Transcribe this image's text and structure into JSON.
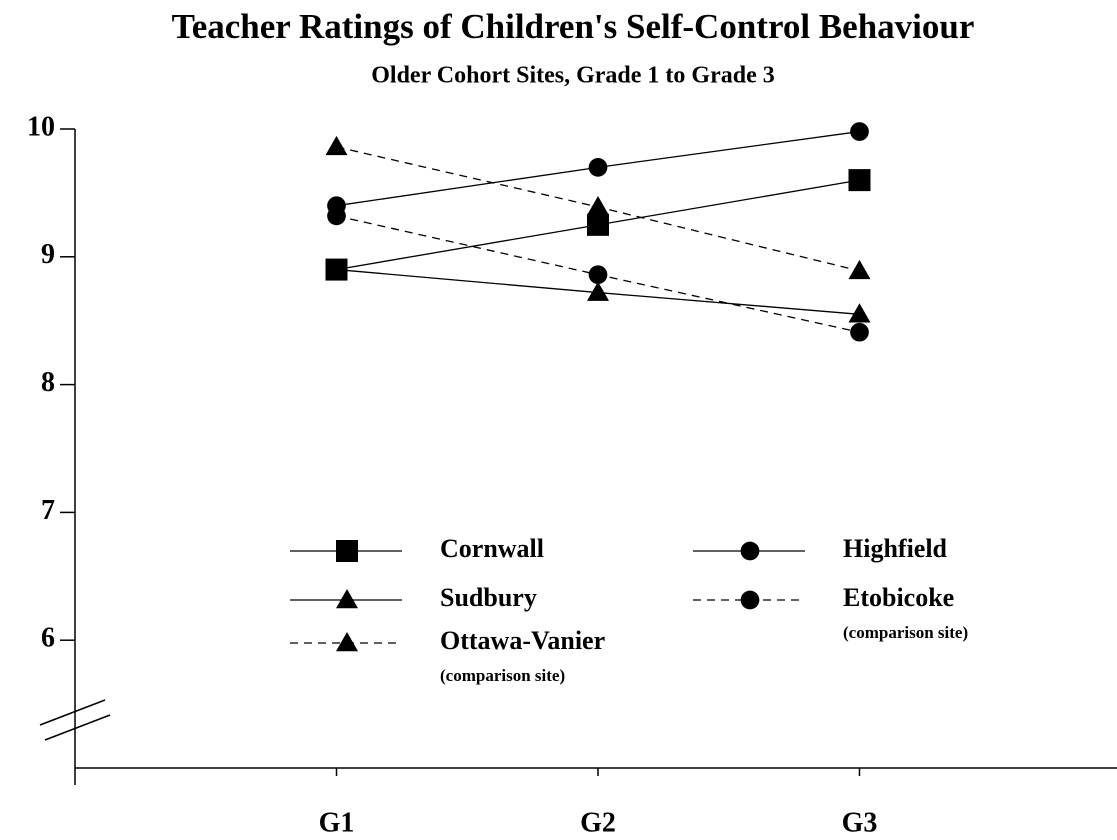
{
  "chart_data": {
    "type": "line",
    "title": "Teacher Ratings of Children's Self-Control Behaviour",
    "subtitle": "Older Cohort Sites, Grade 1 to Grade 3",
    "categories": [
      "G1",
      "G2",
      "G3"
    ],
    "ylim": [
      5,
      10
    ],
    "yticks": [
      6,
      7,
      8,
      9,
      10
    ],
    "grid": false,
    "axis_break": true,
    "series": [
      {
        "name": "Cornwall",
        "color": "#000000",
        "marker": "square",
        "dash": false,
        "values": [
          8.9,
          9.25,
          9.6
        ]
      },
      {
        "name": "Highfield",
        "color": "#000000",
        "marker": "circle",
        "dash": false,
        "values": [
          9.4,
          9.7,
          9.98
        ]
      },
      {
        "name": "Sudbury",
        "color": "#000000",
        "marker": "triangle",
        "dash": false,
        "values": [
          8.9,
          8.72,
          8.55
        ]
      },
      {
        "name": "Etobicoke",
        "note": "(comparison site)",
        "color": "#000000",
        "marker": "circle",
        "dash": true,
        "values": [
          9.32,
          8.86,
          8.41
        ]
      },
      {
        "name": "Ottawa-Vanier",
        "note": "(comparison site)",
        "color": "#000000",
        "marker": "triangle",
        "dash": true,
        "values": [
          9.86,
          9.39,
          8.89
        ]
      }
    ]
  }
}
